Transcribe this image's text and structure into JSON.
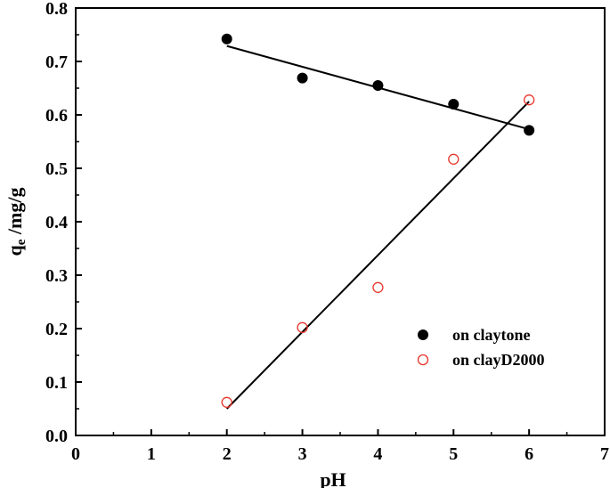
{
  "chart_data": {
    "type": "scatter",
    "xlabel": "pH",
    "ylabel": "q",
    "ylabel_sub": "e",
    "ylabel_suffix": " /mg/g",
    "xlim": [
      0,
      7
    ],
    "ylim": [
      0,
      0.8
    ],
    "x_ticks": [
      0,
      1,
      2,
      3,
      4,
      5,
      6,
      7
    ],
    "y_ticks": [
      0.0,
      0.1,
      0.2,
      0.3,
      0.4,
      0.5,
      0.6,
      0.7,
      0.8
    ],
    "x_tick_labels": [
      "0",
      "1",
      "2",
      "3",
      "4",
      "5",
      "6",
      "7"
    ],
    "y_tick_labels": [
      "0.0",
      "0.1",
      "0.2",
      "0.3",
      "0.4",
      "0.5",
      "0.6",
      "0.7",
      "0.8"
    ],
    "grid": false,
    "legend_position": "lower-right",
    "series": [
      {
        "name": "on claytone",
        "marker": "filled-circle",
        "color": "#000000",
        "x": [
          2,
          3,
          4,
          5,
          6
        ],
        "y": [
          0.742,
          0.669,
          0.655,
          0.62,
          0.571
        ],
        "fit_line": [
          [
            2,
            0.729
          ],
          [
            6,
            0.573
          ]
        ]
      },
      {
        "name": "on clayD2000",
        "marker": "open-circle",
        "color": "#e8332a",
        "x": [
          2,
          3,
          4,
          5,
          6
        ],
        "y": [
          0.062,
          0.202,
          0.277,
          0.517,
          0.628
        ],
        "fit_line": [
          [
            2,
            0.05
          ],
          [
            6,
            0.625
          ]
        ]
      }
    ],
    "fit_line_color": "#000000"
  }
}
